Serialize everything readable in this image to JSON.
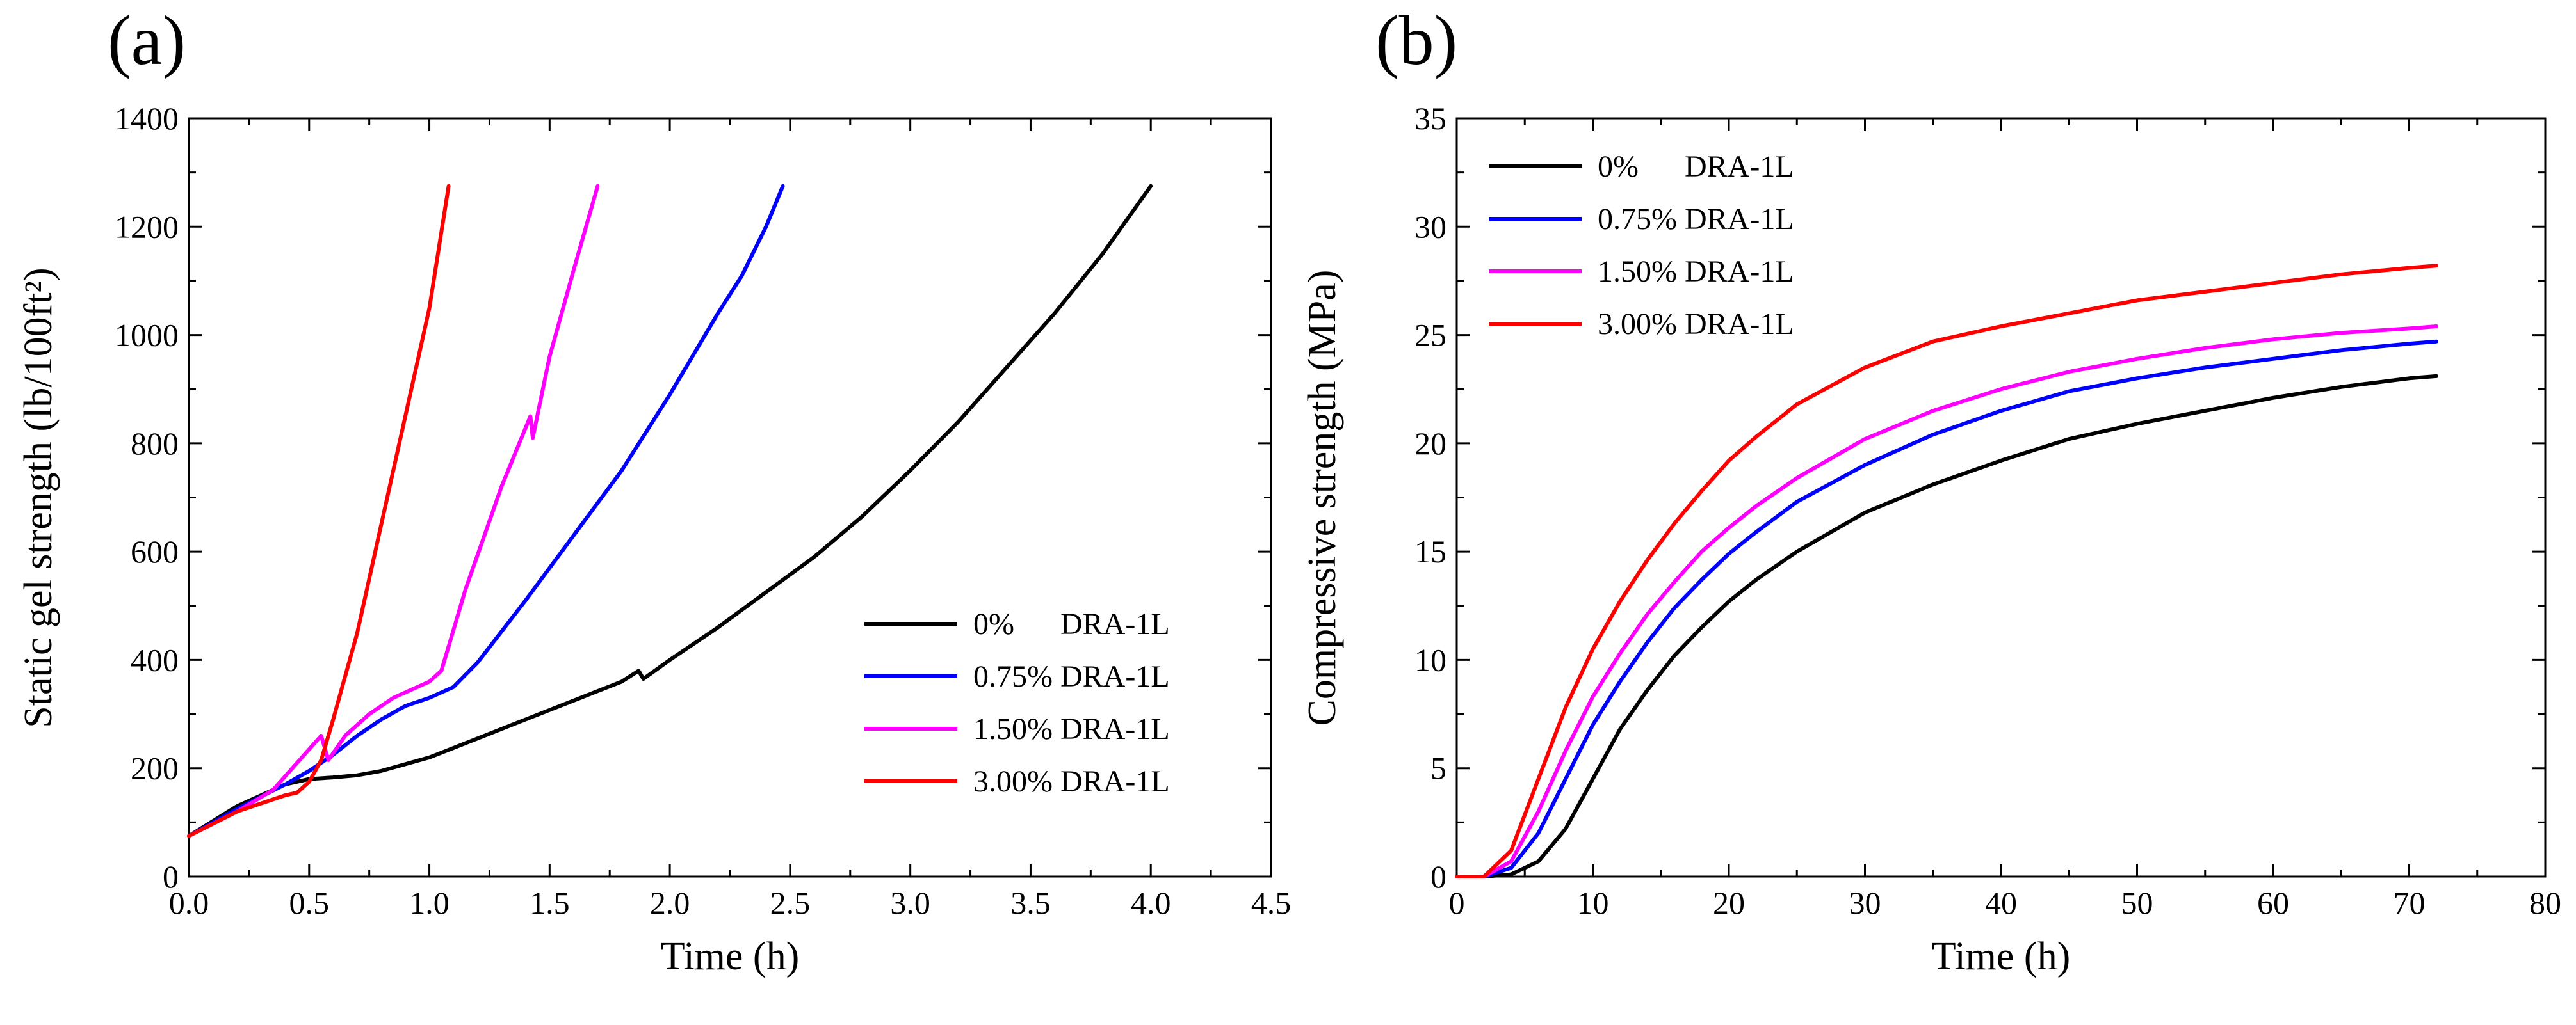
{
  "figure": {
    "panels": [
      "(a)",
      "(b)"
    ]
  },
  "chart_data": [
    {
      "type": "line",
      "panel": "(a)",
      "title": "",
      "xlabel": "Time (h)",
      "ylabel": "Static gel strength (lb/100ft²)",
      "xlim": [
        0,
        4.5
      ],
      "ylim": [
        0,
        1400
      ],
      "xticks": [
        "0.0",
        "0.5",
        "1.0",
        "1.5",
        "2.0",
        "2.5",
        "3.0",
        "3.5",
        "4.0",
        "4.5"
      ],
      "yticks": [
        "0",
        "200",
        "400",
        "600",
        "800",
        "1000",
        "1200",
        "1400"
      ],
      "grid": false,
      "legend_position": "lower-right",
      "series": [
        {
          "name": "0%      DRA-1L",
          "color": "#000000",
          "x": [
            0,
            0.2,
            0.4,
            0.5,
            0.6,
            0.7,
            0.8,
            1.0,
            1.2,
            1.4,
            1.6,
            1.8,
            1.87,
            1.89,
            2.0,
            2.2,
            2.4,
            2.6,
            2.8,
            3.0,
            3.2,
            3.4,
            3.6,
            3.8,
            4.0
          ],
          "y": [
            75,
            130,
            170,
            180,
            183,
            187,
            195,
            220,
            255,
            290,
            325,
            360,
            380,
            365,
            400,
            460,
            525,
            590,
            665,
            750,
            840,
            940,
            1040,
            1150,
            1275
          ]
        },
        {
          "name": "0.75% DRA-1L",
          "color": "#0000ff",
          "x": [
            0,
            0.2,
            0.4,
            0.5,
            0.6,
            0.7,
            0.8,
            0.9,
            1.0,
            1.1,
            1.2,
            1.4,
            1.6,
            1.8,
            2.0,
            2.2,
            2.3,
            2.4,
            2.47
          ],
          "y": [
            75,
            125,
            170,
            195,
            225,
            260,
            290,
            315,
            330,
            350,
            395,
            510,
            630,
            750,
            890,
            1040,
            1110,
            1200,
            1275
          ]
        },
        {
          "name": "1.50% DRA-1L",
          "color": "#ff00ff",
          "x": [
            0,
            0.2,
            0.35,
            0.45,
            0.55,
            0.58,
            0.65,
            0.75,
            0.85,
            1.0,
            1.05,
            1.15,
            1.3,
            1.42,
            1.43,
            1.5,
            1.6,
            1.7
          ],
          "y": [
            75,
            120,
            160,
            210,
            260,
            215,
            260,
            300,
            330,
            360,
            380,
            530,
            720,
            850,
            810,
            960,
            1120,
            1275
          ]
        },
        {
          "name": "3.00% DRA-1L",
          "color": "#ff0000",
          "x": [
            0,
            0.2,
            0.4,
            0.45,
            0.5,
            0.55,
            0.6,
            0.7,
            0.8,
            0.9,
            1.0,
            1.08
          ],
          "y": [
            75,
            120,
            150,
            155,
            175,
            215,
            290,
            450,
            650,
            850,
            1050,
            1275
          ]
        }
      ]
    },
    {
      "type": "line",
      "panel": "(b)",
      "title": "",
      "xlabel": "Time (h)",
      "ylabel": "Compressive strength (MPa)",
      "xlim": [
        0,
        80
      ],
      "ylim": [
        0,
        35
      ],
      "xticks": [
        "0",
        "10",
        "20",
        "30",
        "40",
        "50",
        "60",
        "70",
        "80"
      ],
      "yticks": [
        "0",
        "5",
        "10",
        "15",
        "20",
        "25",
        "30",
        "35"
      ],
      "grid": false,
      "legend_position": "top-left",
      "series": [
        {
          "name": "0%      DRA-1L",
          "color": "#000000",
          "x": [
            0,
            2,
            4,
            6,
            8,
            10,
            12,
            14,
            16,
            18,
            20,
            22,
            25,
            30,
            35,
            40,
            45,
            50,
            55,
            60,
            65,
            70,
            72
          ],
          "y": [
            0,
            0,
            0.1,
            0.7,
            2.2,
            4.5,
            6.8,
            8.6,
            10.2,
            11.5,
            12.7,
            13.7,
            15.0,
            16.8,
            18.1,
            19.2,
            20.2,
            20.9,
            21.5,
            22.1,
            22.6,
            23.0,
            23.1
          ]
        },
        {
          "name": "0.75% DRA-1L",
          "color": "#0000ff",
          "x": [
            0,
            2,
            4,
            6,
            8,
            10,
            12,
            14,
            16,
            18,
            20,
            22,
            25,
            30,
            35,
            40,
            45,
            50,
            55,
            60,
            65,
            70,
            72
          ],
          "y": [
            0,
            0,
            0.4,
            2.0,
            4.5,
            7.0,
            9.0,
            10.8,
            12.4,
            13.7,
            14.9,
            15.9,
            17.3,
            19.0,
            20.4,
            21.5,
            22.4,
            23.0,
            23.5,
            23.9,
            24.3,
            24.6,
            24.7
          ]
        },
        {
          "name": "1.50% DRA-1L",
          "color": "#ff00ff",
          "x": [
            0,
            2,
            4,
            6,
            8,
            10,
            12,
            14,
            16,
            18,
            20,
            22,
            25,
            30,
            35,
            40,
            45,
            50,
            55,
            60,
            65,
            70,
            72
          ],
          "y": [
            0,
            0,
            0.7,
            3.0,
            5.8,
            8.3,
            10.3,
            12.1,
            13.6,
            15.0,
            16.1,
            17.1,
            18.4,
            20.2,
            21.5,
            22.5,
            23.3,
            23.9,
            24.4,
            24.8,
            25.1,
            25.3,
            25.4
          ]
        },
        {
          "name": "3.00% DRA-1L",
          "color": "#ff0000",
          "x": [
            0,
            2,
            4,
            6,
            8,
            10,
            12,
            14,
            16,
            18,
            20,
            22,
            25,
            30,
            35,
            40,
            45,
            50,
            55,
            60,
            65,
            70,
            72
          ],
          "y": [
            0,
            0,
            1.2,
            4.5,
            7.8,
            10.5,
            12.7,
            14.6,
            16.3,
            17.8,
            19.2,
            20.3,
            21.8,
            23.5,
            24.7,
            25.4,
            26.0,
            26.6,
            27.0,
            27.4,
            27.8,
            28.1,
            28.2
          ]
        }
      ]
    }
  ]
}
